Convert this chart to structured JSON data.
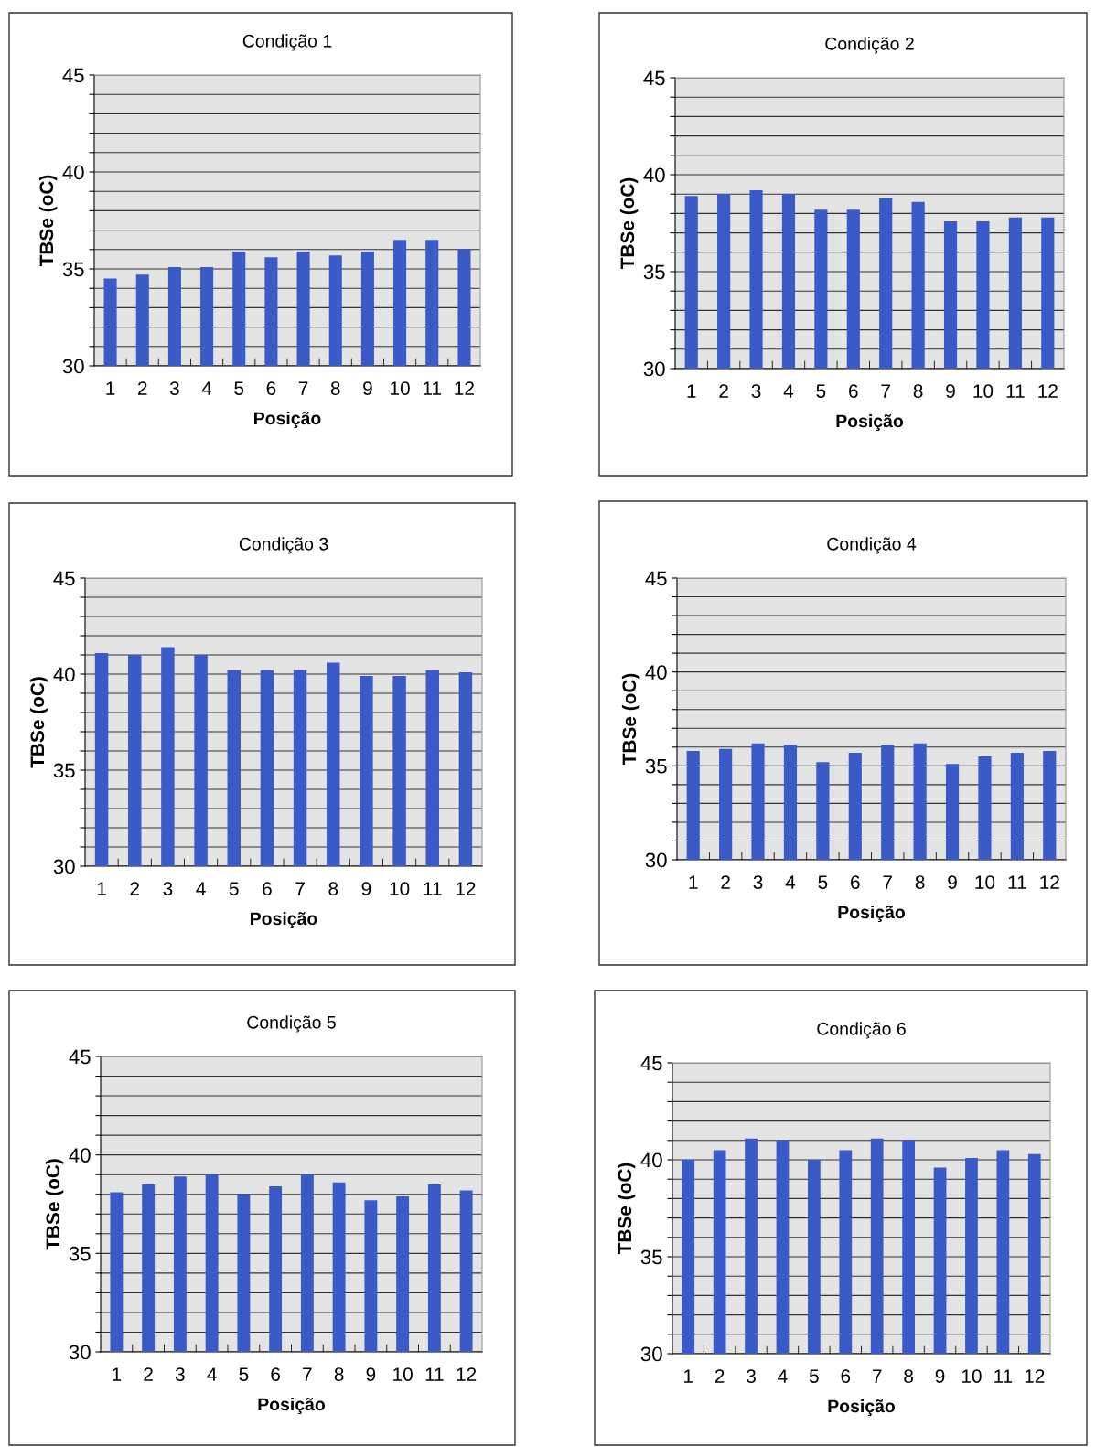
{
  "chart_data": [
    {
      "type": "bar",
      "title": "Condição 1",
      "xlabel": "Posição",
      "ylabel": "TBSe (oC)",
      "categories": [
        "1",
        "2",
        "3",
        "4",
        "5",
        "6",
        "7",
        "8",
        "9",
        "10",
        "11",
        "12"
      ],
      "color": "#3a5bc7",
      "values": [
        34.5,
        34.7,
        35.1,
        35.1,
        35.9,
        35.6,
        35.9,
        35.7,
        35.9,
        36.5,
        36.5,
        36.0
      ],
      "ylim": [
        30,
        45
      ],
      "yticks": [
        30,
        {
          "value": 31,
          "label": null
        },
        {
          "value": 32,
          "label": null
        },
        {
          "value": 33,
          "label": null
        },
        {
          "value": 34,
          "label": null
        },
        35,
        {
          "value": 36,
          "label": null
        },
        {
          "value": 37,
          "label": null
        },
        {
          "value": 38,
          "label": null
        },
        {
          "value": 39,
          "label": null
        },
        40,
        {
          "value": 41,
          "label": null
        },
        {
          "value": 42,
          "label": null
        },
        {
          "value": 43,
          "label": null
        },
        {
          "value": 44,
          "label": null
        },
        45
      ],
      "grid": "y"
    },
    {
      "type": "bar",
      "title": "Condição 2",
      "xlabel": "Posição",
      "ylabel": "TBSe (oC)",
      "categories": [
        "1",
        "2",
        "3",
        "4",
        "5",
        "6",
        "7",
        "8",
        "9",
        "10",
        "11",
        "12"
      ],
      "color": "#3a5bc7",
      "values": [
        38.9,
        39.0,
        39.2,
        39.0,
        38.2,
        38.2,
        38.8,
        38.6,
        37.6,
        37.6,
        37.8,
        37.8
      ],
      "ylim": [
        30,
        45
      ],
      "yticks": [
        30,
        {
          "value": 31,
          "label": null
        },
        {
          "value": 32,
          "label": null
        },
        {
          "value": 33,
          "label": null
        },
        {
          "value": 34,
          "label": null
        },
        35,
        {
          "value": 36,
          "label": null
        },
        {
          "value": 37,
          "label": null
        },
        {
          "value": 38,
          "label": null
        },
        {
          "value": 39,
          "label": null
        },
        40,
        {
          "value": 41,
          "label": null
        },
        {
          "value": 42,
          "label": null
        },
        {
          "value": 43,
          "label": null
        },
        {
          "value": 44,
          "label": null
        },
        45
      ],
      "grid": "y"
    },
    {
      "type": "bar",
      "title": "Condição 3",
      "xlabel": "Posição",
      "ylabel": "TBSe (oC)",
      "categories": [
        "1",
        "2",
        "3",
        "4",
        "5",
        "6",
        "7",
        "8",
        "9",
        "10",
        "11",
        "12"
      ],
      "color": "#3a5bc7",
      "values": [
        41.1,
        41.0,
        41.4,
        41.0,
        40.2,
        40.2,
        40.2,
        40.6,
        39.9,
        39.9,
        40.2,
        40.1
      ],
      "ylim": [
        30,
        45
      ],
      "yticks": [
        30,
        {
          "value": 31,
          "label": null
        },
        {
          "value": 32,
          "label": null
        },
        {
          "value": 33,
          "label": null
        },
        {
          "value": 34,
          "label": null
        },
        35,
        {
          "value": 36,
          "label": null
        },
        {
          "value": 37,
          "label": null
        },
        {
          "value": 38,
          "label": null
        },
        {
          "value": 39,
          "label": null
        },
        40,
        {
          "value": 41,
          "label": null
        },
        {
          "value": 42,
          "label": null
        },
        {
          "value": 43,
          "label": null
        },
        {
          "value": 44,
          "label": null
        },
        45
      ],
      "grid": "y"
    },
    {
      "type": "bar",
      "title": "Condição 4",
      "xlabel": "Posição",
      "ylabel": "TBSe (oC)",
      "categories": [
        "1",
        "2",
        "3",
        "4",
        "5",
        "6",
        "7",
        "8",
        "9",
        "10",
        "11",
        "12"
      ],
      "color": "#3a5bc7",
      "values": [
        35.8,
        35.9,
        36.2,
        36.1,
        35.2,
        35.7,
        36.1,
        36.2,
        35.1,
        35.5,
        35.7,
        35.8
      ],
      "ylim": [
        30,
        45
      ],
      "yticks": [
        30,
        {
          "value": 31,
          "label": null
        },
        {
          "value": 32,
          "label": null
        },
        {
          "value": 33,
          "label": null
        },
        {
          "value": 34,
          "label": null
        },
        35,
        {
          "value": 36,
          "label": null
        },
        {
          "value": 37,
          "label": null
        },
        {
          "value": 38,
          "label": null
        },
        {
          "value": 39,
          "label": null
        },
        40,
        {
          "value": 41,
          "label": null
        },
        {
          "value": 42,
          "label": null
        },
        {
          "value": 43,
          "label": null
        },
        {
          "value": 44,
          "label": null
        },
        45
      ],
      "grid": "y"
    },
    {
      "type": "bar",
      "title": "Condição 5",
      "xlabel": "Posição",
      "ylabel": "TBSe (oC)",
      "categories": [
        "1",
        "2",
        "3",
        "4",
        "5",
        "6",
        "7",
        "8",
        "9",
        "10",
        "11",
        "12"
      ],
      "color": "#3a5bc7",
      "values": [
        38.1,
        38.5,
        38.9,
        39.0,
        38.0,
        38.4,
        39.0,
        38.6,
        37.7,
        37.9,
        38.5,
        38.2
      ],
      "ylim": [
        30,
        45
      ],
      "yticks": [
        30,
        {
          "value": 31,
          "label": null
        },
        {
          "value": 32,
          "label": null
        },
        {
          "value": 33,
          "label": null
        },
        {
          "value": 34,
          "label": null
        },
        35,
        {
          "value": 36,
          "label": null
        },
        {
          "value": 37,
          "label": null
        },
        {
          "value": 38,
          "label": null
        },
        {
          "value": 39,
          "label": null
        },
        40,
        {
          "value": 41,
          "label": null
        },
        {
          "value": 42,
          "label": null
        },
        {
          "value": 43,
          "label": null
        },
        {
          "value": 44,
          "label": null
        },
        45
      ],
      "grid": "y"
    },
    {
      "type": "bar",
      "title": "Condição 6",
      "xlabel": "Posição",
      "ylabel": "TBSe (oC)",
      "categories": [
        "1",
        "2",
        "3",
        "4",
        "5",
        "6",
        "7",
        "8",
        "9",
        "10",
        "11",
        "12"
      ],
      "color": "#3a5bc7",
      "values": [
        40.0,
        40.5,
        41.1,
        41.0,
        40.0,
        40.5,
        41.1,
        41.0,
        39.6,
        40.1,
        40.5,
        40.3
      ],
      "ylim": [
        30,
        45
      ],
      "yticks": [
        30,
        {
          "value": 31,
          "label": null
        },
        {
          "value": 32,
          "label": null
        },
        {
          "value": 33,
          "label": null
        },
        {
          "value": 34,
          "label": null
        },
        35,
        {
          "value": 36,
          "label": null
        },
        {
          "value": 37,
          "label": null
        },
        {
          "value": 38,
          "label": null
        },
        {
          "value": 39,
          "label": null
        },
        40,
        {
          "value": 41,
          "label": null
        },
        {
          "value": 42,
          "label": null
        },
        {
          "value": 43,
          "label": null
        },
        {
          "value": 44,
          "label": null
        },
        45
      ],
      "grid": "y"
    }
  ]
}
